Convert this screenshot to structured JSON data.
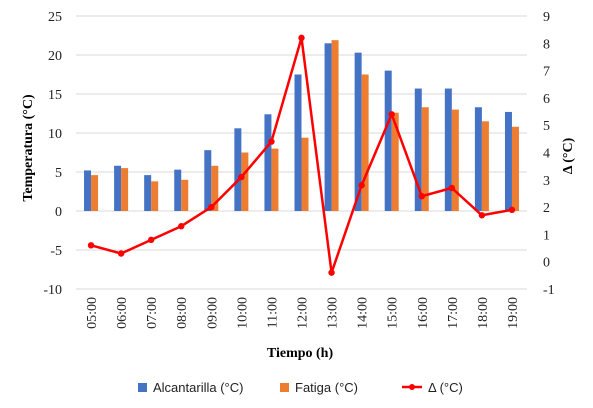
{
  "chart_data": {
    "type": "bar",
    "categories": [
      "05:00",
      "06:00",
      "07:00",
      "08:00",
      "09:00",
      "10:00",
      "11:00",
      "12:00",
      "13:00",
      "14:00",
      "15:00",
      "16:00",
      "17:00",
      "18:00",
      "19:00"
    ],
    "series": [
      {
        "name": "Alcantarilla (°C)",
        "type": "bar",
        "axis": "left",
        "color": "#4472C4",
        "values": [
          5.2,
          5.8,
          4.6,
          5.3,
          7.8,
          10.6,
          12.4,
          17.5,
          21.5,
          20.3,
          18.0,
          15.7,
          15.7,
          13.3,
          12.7
        ]
      },
      {
        "name": "Fatiga (°C)",
        "type": "bar",
        "axis": "left",
        "color": "#ED7D31",
        "values": [
          4.6,
          5.5,
          3.8,
          4.0,
          5.8,
          7.5,
          8.0,
          9.4,
          21.9,
          17.5,
          12.6,
          13.3,
          13.0,
          11.5,
          10.8
        ]
      },
      {
        "name": "Δ (°C)",
        "type": "line",
        "axis": "right",
        "color": "#FF0000",
        "values": [
          0.6,
          0.3,
          0.8,
          1.3,
          2.0,
          3.1,
          4.4,
          8.2,
          -0.4,
          2.8,
          5.4,
          2.4,
          2.7,
          1.7,
          1.9
        ]
      }
    ],
    "xlabel": "Tiempo (h)",
    "ylabel": "Temperatura (°C)",
    "y2label": "Δ (°C)",
    "ylim": [
      -10,
      25
    ],
    "yticks": [
      -10,
      -5,
      0,
      5,
      10,
      15,
      20,
      25
    ],
    "y2lim": [
      -1,
      9
    ],
    "y2ticks": [
      -1,
      0,
      1,
      2,
      3,
      4,
      5,
      6,
      7,
      8,
      9
    ],
    "grid": true,
    "legend_position": "bottom"
  }
}
